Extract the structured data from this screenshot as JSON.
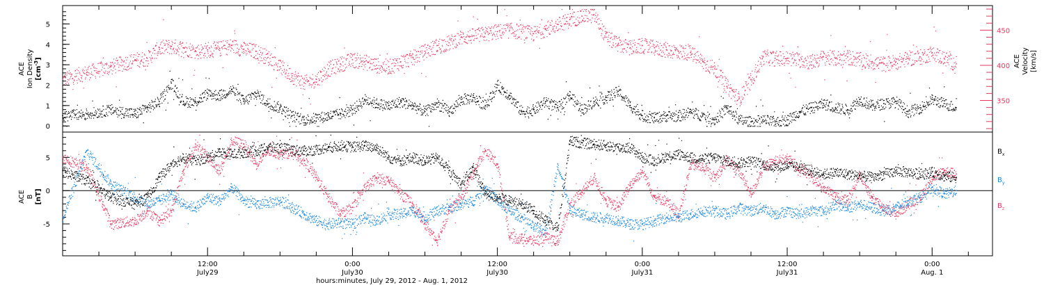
{
  "colors": {
    "black_series": "#000000",
    "red_series": "#e8375f",
    "blue_series": "#1a86e0",
    "axis": "#000000"
  },
  "x_axis": {
    "title": "hours:minutes, July 29, 2012 - Aug.  1, 2012",
    "ticks": [
      {
        "t": 12,
        "label": "12:00",
        "sub": "July29"
      },
      {
        "t": 24,
        "label": "0:00",
        "sub": "July30"
      },
      {
        "t": 36,
        "label": "12:00",
        "sub": "July30"
      },
      {
        "t": 48,
        "label": "0:00",
        "sub": "July31"
      },
      {
        "t": 60,
        "label": "12:00",
        "sub": "July31"
      },
      {
        "t": 72,
        "label": "0:00",
        "sub": "Aug.  1"
      }
    ],
    "range_hours": [
      0,
      77
    ]
  },
  "panel_top": {
    "left_label": [
      "ACE",
      "Ion Density"
    ],
    "left_unit": "[cm",
    "left_unit_sup": "-3",
    "left_unit_end": "]",
    "right_label": [
      "ACE",
      "Velocity"
    ],
    "right_unit": "[km/s]"
  },
  "panel_bottom": {
    "left_label": [
      "ACE",
      "B"
    ],
    "left_unit": "[nT]",
    "legend": [
      {
        "base": "B",
        "sub": "x",
        "color_key": "black_series"
      },
      {
        "base": "B",
        "sub": "y",
        "color_key": "blue_series"
      },
      {
        "base": "B",
        "sub": "z",
        "color_key": "red_series"
      }
    ]
  },
  "chart_data": [
    {
      "type": "scatter",
      "title": "",
      "xlabel": "hours:minutes, July 29, 2012 - Aug.  1, 2012",
      "ylabel": "ACE Ion Density [cm-3]",
      "y2label": "ACE Velocity [km/s]",
      "xlim": [
        0,
        77
      ],
      "ylim": [
        -0.3,
        5.9
      ],
      "y_ticks": [
        0,
        1,
        2,
        3,
        4,
        5
      ],
      "y2lim": [
        305,
        485
      ],
      "y2_ticks": [
        350,
        400,
        450
      ],
      "series": [
        {
          "name": "",
          "axis": "left",
          "color_key": "black_series",
          "x": [
            0,
            2,
            4,
            6,
            7,
            8,
            9,
            10,
            11,
            12,
            13,
            14,
            15,
            16,
            17,
            18,
            19,
            20,
            21,
            22,
            23,
            24,
            25,
            26,
            27,
            28,
            29,
            30,
            31,
            32,
            33,
            34,
            35,
            36,
            37,
            38,
            39,
            40,
            41,
            42,
            43,
            44,
            45,
            46,
            47,
            48,
            49,
            50,
            51,
            52,
            53,
            54,
            55,
            56,
            57,
            58,
            59,
            60,
            61,
            62,
            63,
            64,
            65,
            66,
            67,
            68,
            69,
            70,
            71,
            72,
            73,
            74
          ],
          "y": [
            0.5,
            0.6,
            0.8,
            0.6,
            0.9,
            1.2,
            2.1,
            1.2,
            1.2,
            1.6,
            1.5,
            1.8,
            1.2,
            1.6,
            1.1,
            0.9,
            0.5,
            0.3,
            0.4,
            0.5,
            0.6,
            0.8,
            1.3,
            1.1,
            1.0,
            1.2,
            1.0,
            0.7,
            1.1,
            0.7,
            1.3,
            1.4,
            1.0,
            2.0,
            1.5,
            0.7,
            0.8,
            1.2,
            0.9,
            1.5,
            0.8,
            1.2,
            1.4,
            1.7,
            1.0,
            0.5,
            0.4,
            0.5,
            0.5,
            0.7,
            0.5,
            0.3,
            0.9,
            0.3,
            0.2,
            0.3,
            0.2,
            0.3,
            0.7,
            0.9,
            1.1,
            0.9,
            0.8,
            1.3,
            1.0,
            1.1,
            1.2,
            0.7,
            0.9,
            1.3,
            1.1,
            0.9
          ]
        },
        {
          "name": "",
          "axis": "right",
          "color_key": "red_series",
          "x": [
            0,
            2,
            4,
            6,
            7,
            8,
            9,
            10,
            11,
            12,
            13,
            14,
            15,
            16,
            17,
            18,
            19,
            20,
            21,
            22,
            23,
            24,
            25,
            26,
            27,
            28,
            29,
            30,
            31,
            32,
            33,
            34,
            35,
            36,
            37,
            38,
            39,
            40,
            41,
            42,
            43,
            44,
            45,
            46,
            47,
            48,
            49,
            50,
            51,
            52,
            53,
            54,
            55,
            56,
            57,
            58,
            59,
            60,
            61,
            62,
            63,
            64,
            65,
            66,
            67,
            68,
            69,
            70,
            71,
            72,
            73,
            74
          ],
          "y": [
            380,
            390,
            398,
            408,
            410,
            425,
            427,
            425,
            420,
            422,
            424,
            428,
            423,
            420,
            411,
            398,
            385,
            375,
            380,
            395,
            402,
            408,
            405,
            400,
            398,
            405,
            411,
            420,
            428,
            432,
            440,
            442,
            445,
            448,
            450,
            448,
            445,
            452,
            458,
            465,
            470,
            472,
            440,
            430,
            425,
            428,
            425,
            422,
            420,
            418,
            405,
            395,
            370,
            352,
            380,
            412,
            410,
            410,
            408,
            405,
            412,
            410,
            412,
            408,
            405,
            402,
            405,
            410,
            412,
            418,
            410,
            402
          ]
        }
      ]
    },
    {
      "type": "line",
      "title": "",
      "xlabel": "hours:minutes, July 29, 2012 - Aug.  1, 2012",
      "ylabel": "ACE B [nT]",
      "xlim": [
        0,
        77
      ],
      "ylim": [
        -9.8,
        8.8
      ],
      "y_ticks": [
        -5,
        0,
        5
      ],
      "zero_line": true,
      "series": [
        {
          "name": "Bx",
          "color_key": "black_series",
          "x": [
            0,
            2,
            4,
            6,
            7,
            8,
            9,
            10,
            11,
            12,
            13,
            14,
            15,
            16,
            17,
            18,
            19,
            20,
            21,
            22,
            23,
            24,
            25,
            26,
            27,
            28,
            29,
            30,
            31,
            32,
            33,
            34,
            35,
            36,
            37,
            38,
            39,
            40,
            41,
            42,
            43,
            44,
            45,
            46,
            47,
            48,
            49,
            50,
            51,
            52,
            53,
            54,
            55,
            56,
            57,
            58,
            59,
            60,
            61,
            62,
            63,
            64,
            65,
            66,
            67,
            68,
            69,
            70,
            71,
            72,
            73,
            74
          ],
          "y": [
            3.0,
            1.5,
            -1.0,
            -2.0,
            -1.0,
            2.0,
            4.0,
            5.0,
            4.5,
            5.0,
            5.8,
            5.5,
            5.8,
            6.0,
            6.5,
            6.5,
            6.2,
            6.0,
            6.2,
            6.5,
            6.8,
            6.6,
            6.8,
            6.5,
            5.0,
            4.5,
            5.0,
            4.5,
            5.0,
            3.0,
            1.0,
            3.5,
            -0.5,
            -1.0,
            -1.5,
            -2.0,
            -3.0,
            -4.5,
            -5.5,
            7.5,
            7.2,
            7.0,
            6.8,
            6.5,
            6.5,
            5.0,
            4.5,
            5.2,
            5.5,
            5.0,
            4.8,
            5.0,
            4.5,
            4.2,
            4.5,
            4.0,
            3.5,
            3.8,
            3.5,
            3.0,
            2.5,
            2.8,
            2.5,
            2.3,
            2.0,
            2.5,
            3.0,
            2.8,
            2.5,
            2.8,
            2.2,
            2.0
          ]
        },
        {
          "name": "By",
          "color_key": "blue_series",
          "x": [
            0,
            2,
            4,
            6,
            7,
            8,
            9,
            10,
            11,
            12,
            13,
            14,
            15,
            16,
            17,
            18,
            19,
            20,
            21,
            22,
            23,
            24,
            25,
            26,
            27,
            28,
            29,
            30,
            31,
            32,
            33,
            34,
            35,
            36,
            37,
            38,
            39,
            40,
            41,
            42,
            43,
            44,
            45,
            46,
            47,
            48,
            49,
            50,
            51,
            52,
            53,
            54,
            55,
            56,
            57,
            58,
            59,
            60,
            61,
            62,
            63,
            64,
            65,
            66,
            67,
            68,
            69,
            70,
            71,
            72,
            73,
            74
          ],
          "y": [
            -4.0,
            6.0,
            1.0,
            -1.0,
            -2.0,
            -1.5,
            -0.5,
            -2.0,
            -2.5,
            -1.0,
            -1.5,
            0.5,
            -1.5,
            -2.0,
            -1.8,
            -1.5,
            -2.5,
            -3.5,
            -4.5,
            -5.0,
            -4.8,
            -5.0,
            -4.0,
            -4.5,
            -3.5,
            -3.5,
            -3.0,
            -4.0,
            -3.0,
            -2.5,
            -2.0,
            -1.5,
            0.5,
            -1.5,
            -3.0,
            -4.0,
            -5.5,
            -6.0,
            4.0,
            -3.0,
            -3.5,
            -4.0,
            -4.0,
            -4.5,
            -5.0,
            -5.0,
            -4.5,
            -4.0,
            -4.0,
            -3.5,
            -3.0,
            -3.0,
            -3.5,
            -2.5,
            -3.0,
            -2.5,
            -3.5,
            -3.0,
            -3.5,
            -3.0,
            -3.0,
            -2.0,
            -2.5,
            -2.0,
            -2.5,
            -3.0,
            -2.5,
            -1.5,
            -1.0,
            0.5,
            -0.5,
            0.0
          ]
        },
        {
          "name": "Bz",
          "color_key": "red_series",
          "x": [
            0,
            2,
            4,
            6,
            7,
            8,
            9,
            10,
            11,
            12,
            13,
            14,
            15,
            16,
            17,
            18,
            19,
            20,
            21,
            22,
            23,
            24,
            25,
            26,
            27,
            28,
            29,
            30,
            31,
            32,
            33,
            34,
            35,
            36,
            37,
            38,
            39,
            40,
            41,
            42,
            43,
            44,
            45,
            46,
            47,
            48,
            49,
            50,
            51,
            52,
            53,
            54,
            55,
            56,
            57,
            58,
            59,
            60,
            61,
            62,
            63,
            64,
            65,
            66,
            67,
            68,
            69,
            70,
            71,
            72,
            73,
            74
          ],
          "y": [
            5.0,
            3.5,
            -5.0,
            -4.5,
            -3.0,
            -4.5,
            -3.0,
            3.0,
            7.0,
            5.0,
            3.0,
            7.5,
            7.0,
            4.0,
            6.0,
            5.5,
            5.8,
            4.5,
            2.0,
            -1.0,
            -3.5,
            -2.5,
            0.5,
            2.0,
            1.5,
            -0.5,
            -2.0,
            -5.0,
            -7.5,
            -3.0,
            -1.0,
            3.0,
            6.0,
            4.0,
            -7.0,
            -7.2,
            -7.5,
            -7.0,
            -7.5,
            -2.0,
            0.0,
            2.0,
            -1.5,
            -2.5,
            1.0,
            3.0,
            -1.0,
            -1.5,
            -3.5,
            4.0,
            3.5,
            2.0,
            4.5,
            3.0,
            -0.5,
            3.5,
            4.5,
            4.8,
            3.5,
            2.0,
            0.5,
            -1.0,
            -1.5,
            2.5,
            -1.0,
            -2.5,
            -3.5,
            -2.0,
            -1.0,
            2.0,
            3.0,
            2.5
          ]
        }
      ]
    }
  ]
}
